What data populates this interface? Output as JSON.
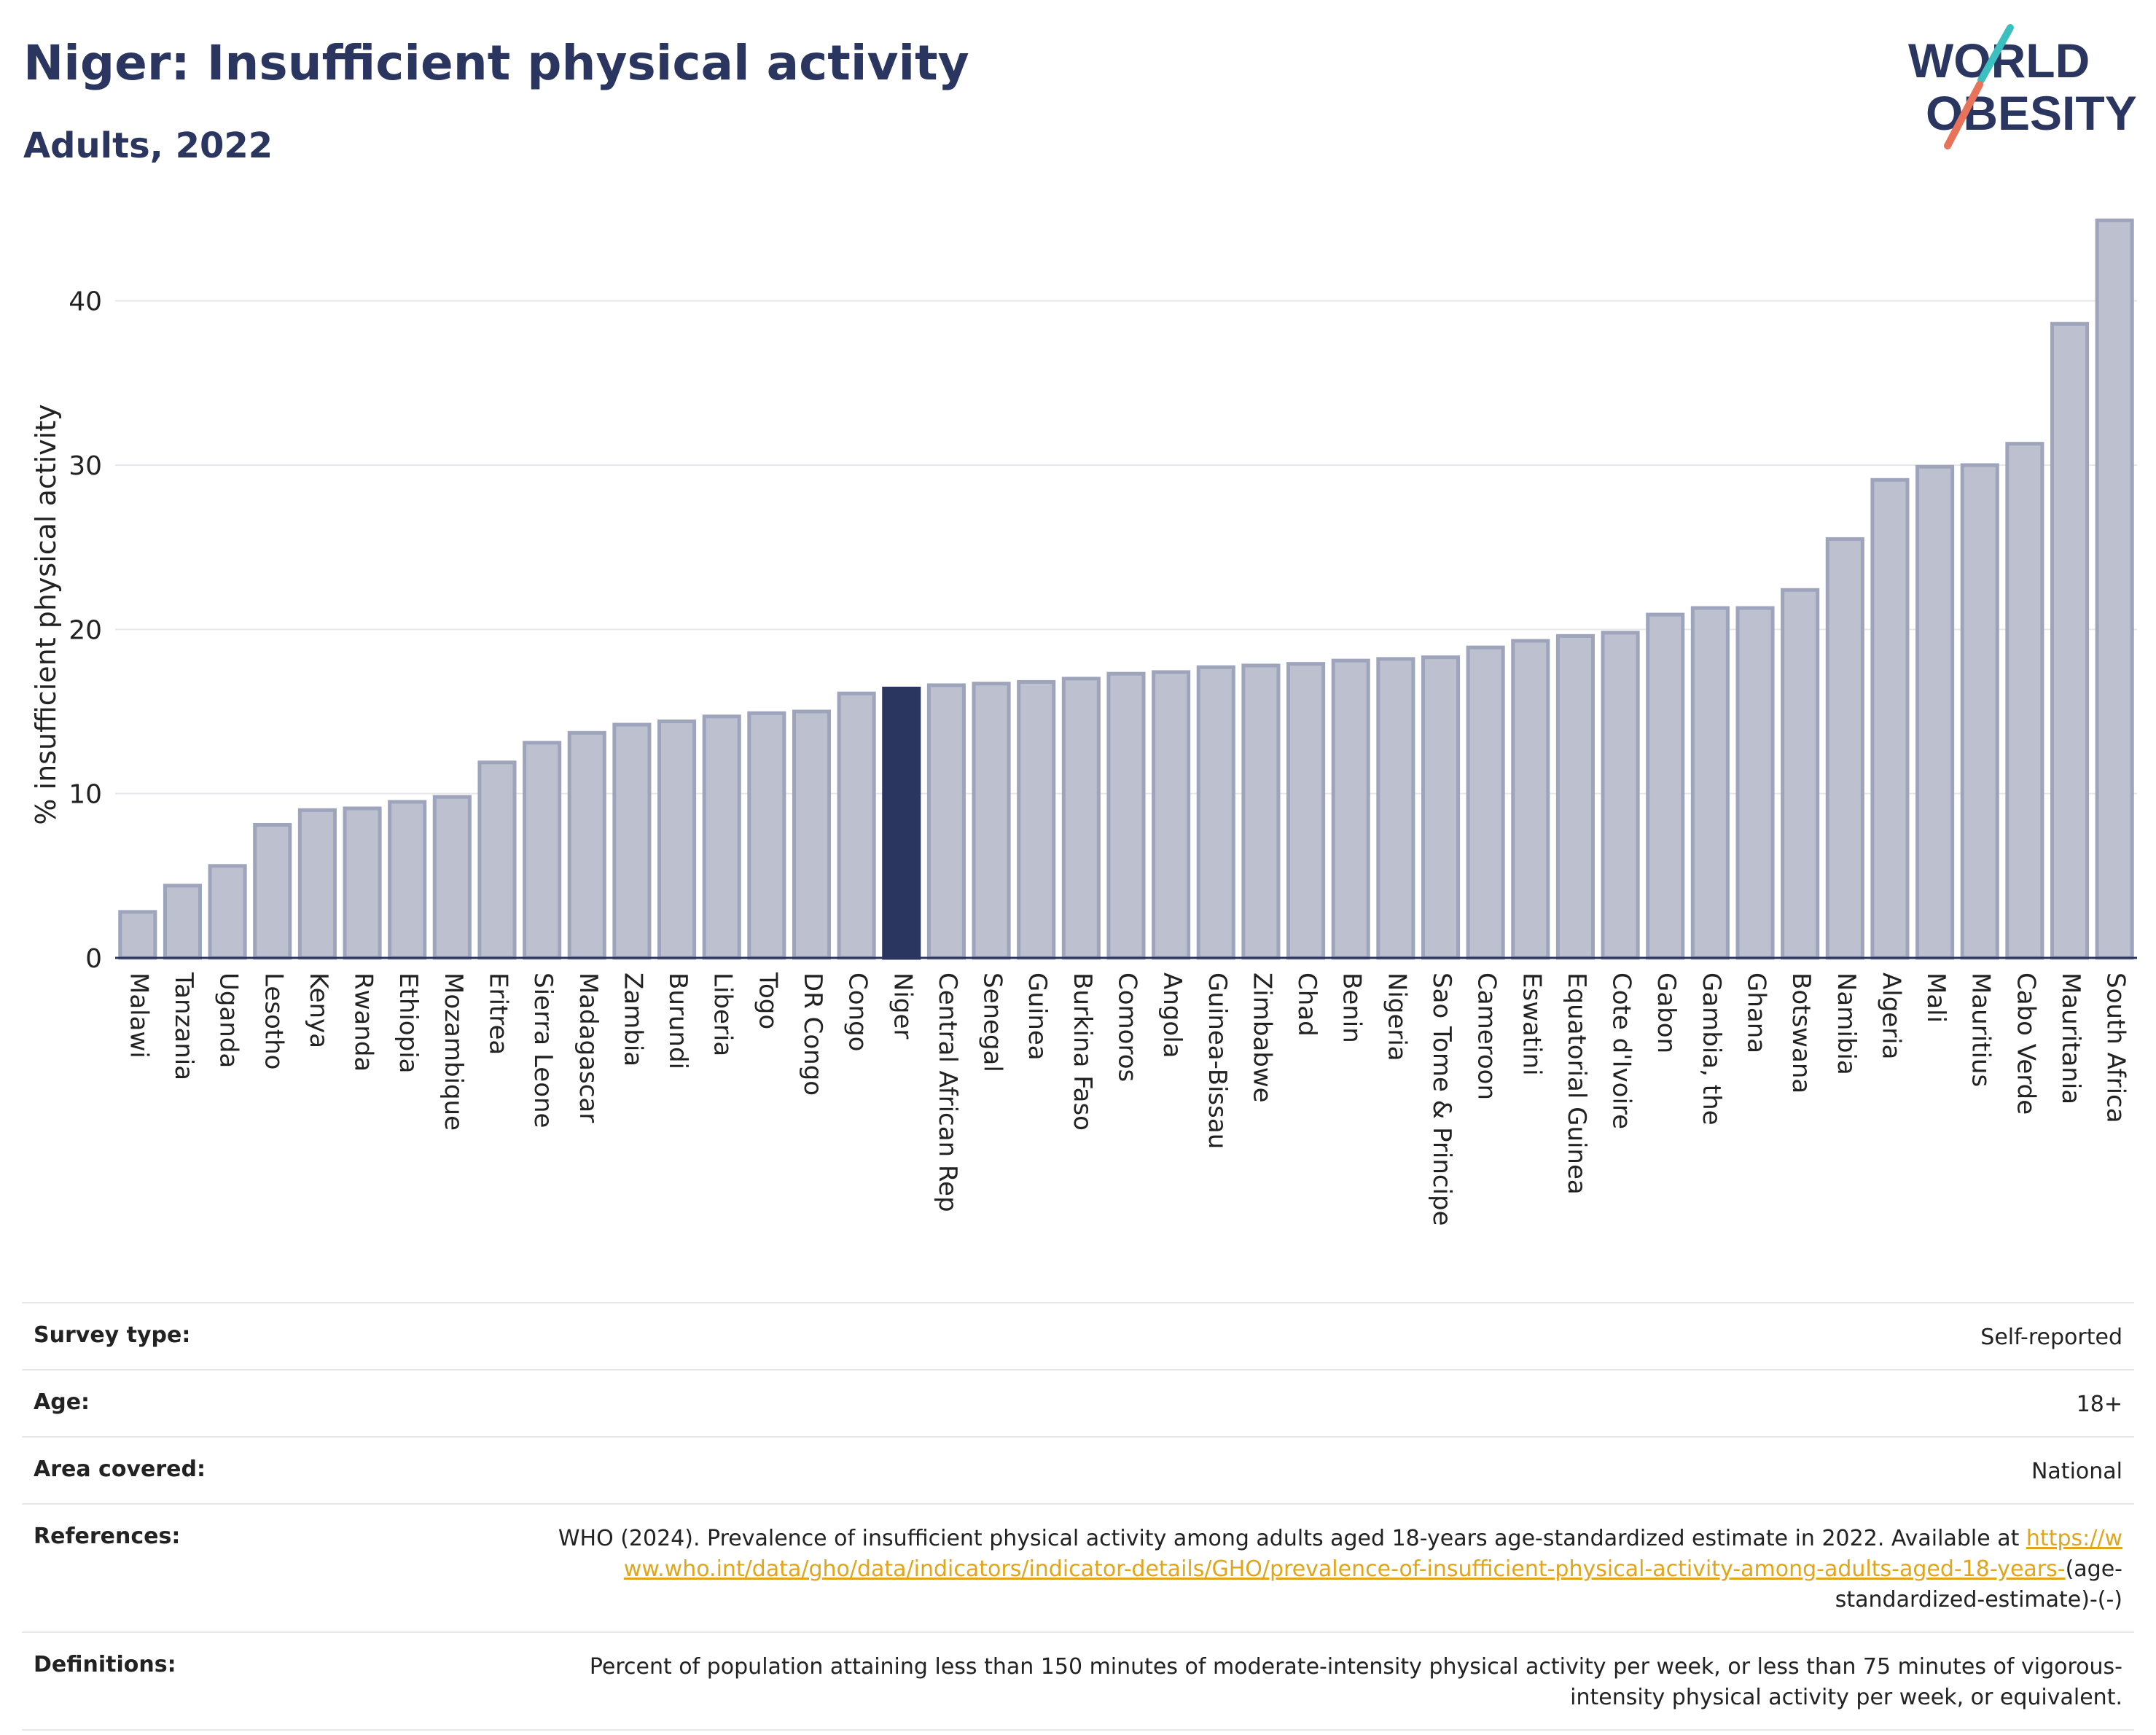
{
  "header": {
    "title": "Niger: Insufficient physical activity",
    "subtitle": "Adults, 2022"
  },
  "logo": {
    "line1": "WORLD",
    "line2": "OBESITY",
    "colors": {
      "text": "#2b3660",
      "slash_top": "#3bbfbf",
      "slash_bottom": "#e8735a"
    }
  },
  "colors": {
    "bar_fill": "#bcc0cf",
    "bar_stroke": "#9ea4bc",
    "highlight": "#2b3660",
    "grid": "#e8e8ec",
    "axis": "#2b3660"
  },
  "chart_data": {
    "type": "bar",
    "ylabel": "% insufficient physical activity",
    "xlabel": "",
    "ylim": [
      0,
      45
    ],
    "yticks": [
      0,
      10,
      20,
      30,
      40
    ],
    "grid": true,
    "highlight_category": "Niger",
    "categories": [
      "Malawi",
      "Tanzania",
      "Uganda",
      "Lesotho",
      "Kenya",
      "Rwanda",
      "Ethiopia",
      "Mozambique",
      "Eritrea",
      "Sierra Leone",
      "Madagascar",
      "Zambia",
      "Burundi",
      "Liberia",
      "Togo",
      "DR Congo",
      "Congo",
      "Niger",
      "Central African Rep",
      "Senegal",
      "Guinea",
      "Burkina Faso",
      "Comoros",
      "Angola",
      "Guinea-Bissau",
      "Zimbabwe",
      "Chad",
      "Benin",
      "Nigeria",
      "Sao Tome & Principe",
      "Cameroon",
      "Eswatini",
      "Equatorial Guinea",
      "Cote d'Ivoire",
      "Gabon",
      "Gambia, the",
      "Ghana",
      "Botswana",
      "Namibia",
      "Algeria",
      "Mali",
      "Mauritius",
      "Cabo Verde",
      "Mauritania",
      "South Africa"
    ],
    "values": [
      2.8,
      4.4,
      5.6,
      8.1,
      9.0,
      9.1,
      9.5,
      9.8,
      11.9,
      13.1,
      13.7,
      14.2,
      14.4,
      14.7,
      14.9,
      15.0,
      16.1,
      16.4,
      16.6,
      16.7,
      16.8,
      17.0,
      17.3,
      17.4,
      17.7,
      17.8,
      17.9,
      18.1,
      18.2,
      18.3,
      18.9,
      19.3,
      19.6,
      19.8,
      20.9,
      21.3,
      21.3,
      22.4,
      25.5,
      29.1,
      29.9,
      30.0,
      31.3,
      38.6,
      44.9
    ]
  },
  "meta": [
    {
      "label": "Survey type:",
      "value": "Self-reported"
    },
    {
      "label": "Age:",
      "value": "18+"
    },
    {
      "label": "Area covered:",
      "value": "National"
    },
    {
      "label": "References:",
      "value": "WHO (2024). Prevalence of insufficient physical activity among adults aged 18-years age-standardized estimate in 2022. Available at",
      "link": "https://www.who.int/data/gho/data/indicators/indicator-details/GHO/prevalence-of-insufficient-physical-activity-among-adults-aged-18-years-",
      "suffix": "(age-standardized-estimate)-(-)"
    },
    {
      "label": "Definitions:",
      "value": "Percent of population attaining less than 150 minutes of moderate-intensity physical activity per week, or less than 75 minutes of vigorous-intensity physical activity per week, or equivalent."
    }
  ]
}
